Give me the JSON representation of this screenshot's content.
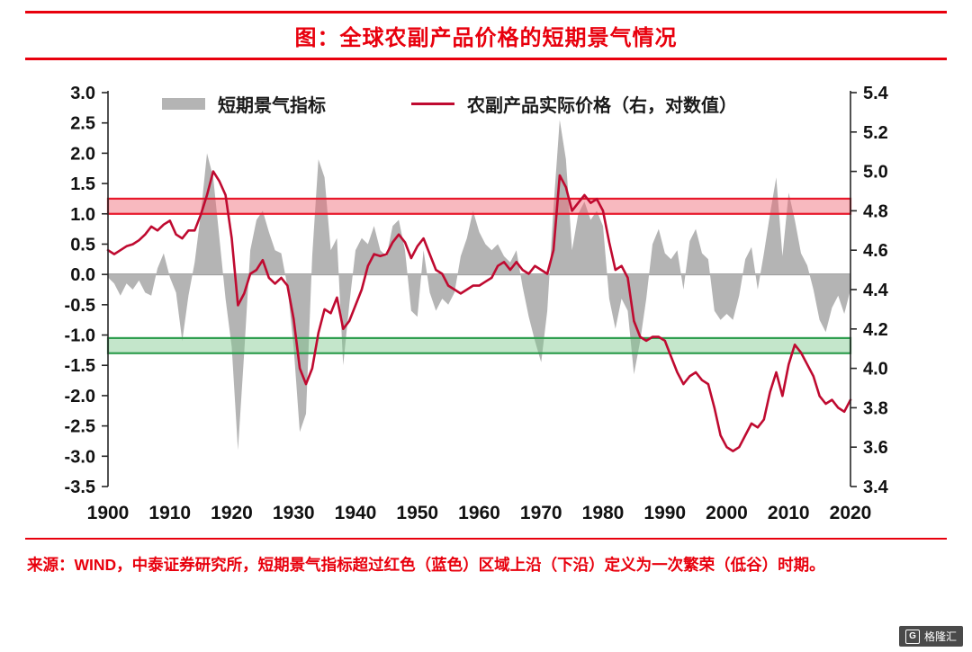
{
  "header": {
    "title": "图：全球农副产品价格的短期景气情况"
  },
  "colors": {
    "accent_red": "#e8000d",
    "indicator_gray": "#b4b4b4",
    "price_red": "#bf0a30",
    "boom_band_stroke": "#e8192c",
    "trough_band_stroke": "#2f9e4f"
  },
  "chart_data": {
    "type": "combo",
    "title": "图：全球农副产品价格的短期景气情况",
    "x_start": 1900,
    "x_end": 2020,
    "x_tick_interval": 10,
    "left_axis": {
      "min": -3.5,
      "max": 3.0,
      "tick_step": 0.5,
      "grid": false
    },
    "right_axis": {
      "min": 3.4,
      "max": 5.4,
      "tick_step": 0.2
    },
    "legend_position": "top",
    "bands": [
      {
        "name": "boom-band",
        "axis": "left",
        "from": 1.0,
        "to": 1.25,
        "fill": "#ef6470",
        "fill_opacity": 0.45,
        "stroke": "#e8192c"
      },
      {
        "name": "trough-band",
        "axis": "left",
        "from": -1.3,
        "to": -1.05,
        "fill": "#7cc88c",
        "fill_opacity": 0.45,
        "stroke": "#2f9e4f"
      }
    ],
    "series": [
      {
        "name": "短期景气指标",
        "type": "area",
        "axis": "left",
        "color": "#b4b4b4",
        "values": [
          -0.05,
          -0.15,
          -0.35,
          -0.15,
          -0.25,
          -0.1,
          -0.3,
          -0.35,
          0.1,
          0.35,
          -0.05,
          -0.3,
          -1.1,
          -0.35,
          0.2,
          1.0,
          2.0,
          1.6,
          0.6,
          -0.4,
          -1.2,
          -2.9,
          -1.3,
          0.4,
          0.9,
          1.05,
          0.7,
          0.4,
          0.35,
          -0.2,
          -1.2,
          -2.6,
          -2.3,
          0.3,
          1.9,
          1.6,
          0.4,
          0.6,
          -1.5,
          -0.5,
          0.4,
          0.6,
          0.5,
          0.8,
          0.4,
          0.3,
          0.8,
          0.9,
          0.4,
          -0.6,
          -0.7,
          0.4,
          -0.3,
          -0.6,
          -0.4,
          -0.5,
          -0.3,
          0.3,
          0.6,
          1.05,
          0.7,
          0.5,
          0.4,
          0.5,
          0.3,
          0.2,
          0.4,
          -0.2,
          -0.7,
          -1.1,
          -1.45,
          -0.6,
          1.1,
          2.55,
          1.9,
          0.4,
          1.0,
          1.2,
          0.9,
          1.05,
          0.8,
          -0.4,
          -0.9,
          -0.4,
          -0.6,
          -1.65,
          -1.1,
          -0.4,
          0.5,
          0.75,
          0.35,
          0.25,
          0.4,
          -0.25,
          0.55,
          0.75,
          0.35,
          0.25,
          -0.6,
          -0.75,
          -0.65,
          -0.75,
          -0.35,
          0.25,
          0.45,
          -0.25,
          0.35,
          1.0,
          1.6,
          0.3,
          1.35,
          0.9,
          0.35,
          0.15,
          -0.25,
          -0.75,
          -0.95,
          -0.55,
          -0.35,
          -0.65,
          -0.25
        ]
      },
      {
        "name": "农副产品实际价格（右，对数值）",
        "type": "line",
        "axis": "right",
        "color": "#bf0a30",
        "values": [
          4.6,
          4.58,
          4.6,
          4.62,
          4.63,
          4.65,
          4.68,
          4.72,
          4.7,
          4.73,
          4.75,
          4.68,
          4.66,
          4.7,
          4.7,
          4.78,
          4.88,
          5.0,
          4.95,
          4.88,
          4.66,
          4.32,
          4.38,
          4.48,
          4.5,
          4.55,
          4.46,
          4.43,
          4.46,
          4.42,
          4.25,
          4.0,
          3.92,
          4.0,
          4.18,
          4.3,
          4.28,
          4.36,
          4.2,
          4.24,
          4.32,
          4.4,
          4.52,
          4.58,
          4.57,
          4.58,
          4.64,
          4.68,
          4.64,
          4.56,
          4.62,
          4.66,
          4.58,
          4.5,
          4.48,
          4.42,
          4.4,
          4.38,
          4.4,
          4.42,
          4.42,
          4.44,
          4.46,
          4.52,
          4.54,
          4.5,
          4.54,
          4.5,
          4.48,
          4.52,
          4.5,
          4.48,
          4.6,
          4.98,
          4.92,
          4.8,
          4.84,
          4.88,
          4.84,
          4.86,
          4.8,
          4.64,
          4.5,
          4.52,
          4.46,
          4.24,
          4.16,
          4.14,
          4.16,
          4.16,
          4.14,
          4.06,
          3.98,
          3.92,
          3.96,
          3.98,
          3.94,
          3.92,
          3.8,
          3.66,
          3.6,
          3.58,
          3.6,
          3.66,
          3.72,
          3.7,
          3.74,
          3.88,
          3.98,
          3.86,
          4.02,
          4.12,
          4.08,
          4.02,
          3.96,
          3.86,
          3.82,
          3.84,
          3.8,
          3.78,
          3.84
        ]
      }
    ]
  },
  "footer": {
    "source": "来源：WIND，中泰证券研究所，短期景气指标超过红色（蓝色）区域上沿（下沿）定义为一次繁荣（低谷）时期。",
    "logo_text": "格隆汇"
  }
}
